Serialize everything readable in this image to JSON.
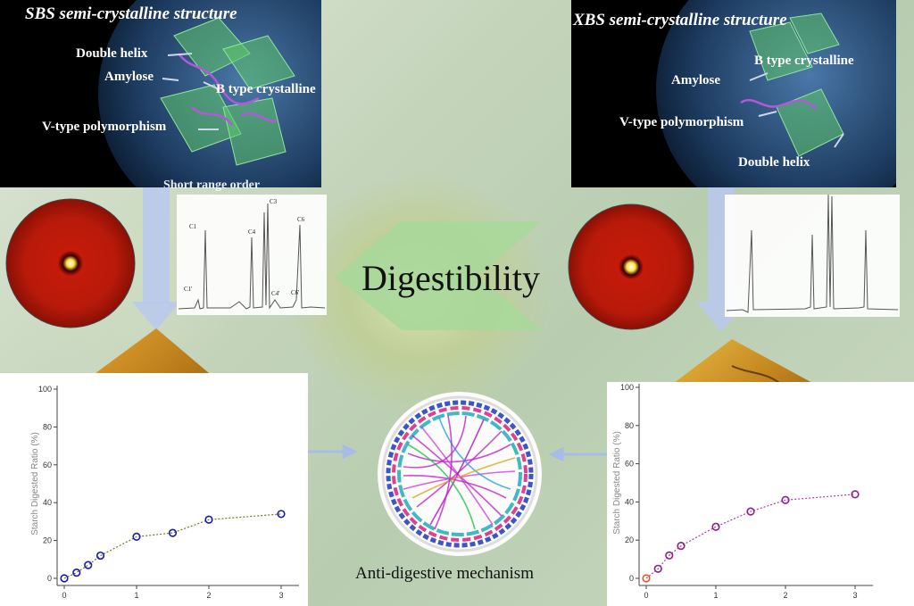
{
  "left_panel": {
    "title": "SBS semi-crystalline structure",
    "labels": {
      "double_helix": "Double helix",
      "amylose": "Amylose",
      "b_type": "B type crystalline",
      "v_type": "V-type polymorphism",
      "short_range": "Short range order"
    }
  },
  "right_panel": {
    "title": "XBS semi-crystalline structure",
    "labels": {
      "b_type": "B type crystalline",
      "amylose": "Amylose",
      "v_type": "V-type polymorphism",
      "double_helix": "Double helix"
    }
  },
  "center": {
    "digestibility": "Digestibility",
    "caption": "Anti-digestive mechanism"
  },
  "nmr_left_peaks": [
    "C1",
    "C4",
    "C3",
    "C6",
    "C1'",
    "C4'",
    "C6'"
  ],
  "chart_data": [
    {
      "type": "scatter",
      "ylabel": "Starch Digested Ratio (%)",
      "ylim": [
        0,
        100
      ],
      "xlim": [
        0,
        3
      ],
      "yticks": [
        "0",
        "20",
        "40",
        "60",
        "80",
        "100"
      ],
      "xticks": [
        "0",
        "1",
        "2",
        "3"
      ],
      "x": [
        0,
        0.17,
        0.33,
        0.5,
        1,
        1.5,
        2,
        3
      ],
      "values": [
        0,
        3,
        7,
        12,
        22,
        24,
        31,
        34
      ],
      "colors": {
        "marker": "#1a1aa8",
        "fit": "#6e7a1e"
      }
    },
    {
      "type": "scatter",
      "ylabel": "Starch Digested Ratio (%)",
      "ylim": [
        0,
        100
      ],
      "xlim": [
        0,
        3
      ],
      "yticks": [
        "0",
        "20",
        "40",
        "60",
        "80",
        "100"
      ],
      "xticks": [
        "0",
        "1",
        "2",
        "3"
      ],
      "x": [
        0,
        0.17,
        0.33,
        0.5,
        1,
        1.5,
        2,
        3
      ],
      "values": [
        0,
        5,
        12,
        17,
        27,
        35,
        41,
        44
      ],
      "colors": {
        "marker": "#8a1f8a",
        "fit": "#b03ab0",
        "first_marker": "#e05a2a"
      }
    }
  ]
}
